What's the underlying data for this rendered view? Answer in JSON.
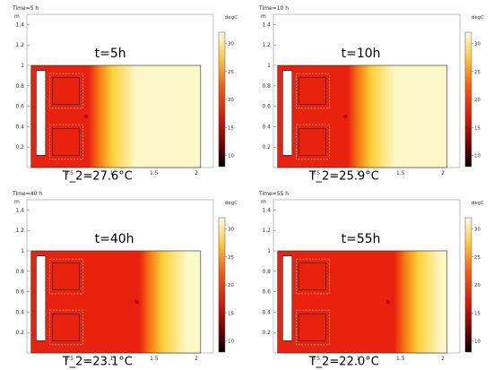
{
  "chart_data": [
    {
      "type": "heatmap",
      "title": "Time=5 h",
      "time_annotation": "t=5h",
      "temp_annotation": "T_2=27.6°C",
      "xunit": "",
      "yunit": "m",
      "xlim": [
        0,
        2.2
      ],
      "ylim": [
        0,
        1.5
      ],
      "xticks": [
        "0.5",
        "1",
        "1.5",
        "2"
      ],
      "yticks": [
        "0.2",
        "0.4",
        "0.6",
        "0.8",
        "1",
        "1.2",
        "1.4"
      ],
      "colorbar": {
        "unit": "degC",
        "ticks": [
          "10",
          "15",
          "20",
          "25",
          "30"
        ],
        "range": [
          8,
          32
        ]
      },
      "warm_front_x": 0.85
    },
    {
      "type": "heatmap",
      "title": "Time=10 h",
      "time_annotation": "t=10h",
      "temp_annotation": "T_2=25.9°C",
      "xunit": "",
      "yunit": "m",
      "xlim": [
        0,
        2.2
      ],
      "ylim": [
        0,
        1.5
      ],
      "xticks": [
        "0.5",
        "1",
        "1.5",
        "2"
      ],
      "yticks": [
        "0.2",
        "0.4",
        "0.6",
        "0.8",
        "1",
        "1.2",
        "1.4"
      ],
      "colorbar": {
        "unit": "degC",
        "ticks": [
          "10",
          "15",
          "20",
          "25",
          "30"
        ],
        "range": [
          8,
          32
        ]
      },
      "warm_front_x": 1.0
    },
    {
      "type": "heatmap",
      "title": "Time=40 h",
      "time_annotation": "t=40h",
      "temp_annotation": "T_2=23.1°C",
      "xunit": "",
      "yunit": "m",
      "xlim": [
        0,
        2.2
      ],
      "ylim": [
        0,
        1.5
      ],
      "xticks": [
        "0.5",
        "1",
        "1.5",
        "2"
      ],
      "yticks": [
        "0.2",
        "0.4",
        "0.6",
        "0.8",
        "1",
        "1.2",
        "1.4"
      ],
      "colorbar": {
        "unit": "degC",
        "ticks": [
          "10",
          "15",
          "20",
          "25",
          "30"
        ],
        "range": [
          8,
          32
        ]
      },
      "warm_front_x": 1.45
    },
    {
      "type": "heatmap",
      "title": "Time=55 h",
      "time_annotation": "t=55h",
      "temp_annotation": "T_2=22.0°C",
      "xunit": "",
      "yunit": "m",
      "xlim": [
        0,
        2.2
      ],
      "ylim": [
        0,
        1.5
      ],
      "xticks": [
        "0.5",
        "1",
        "1.5",
        "2"
      ],
      "yticks": [
        "0.2",
        "0.4",
        "0.6",
        "0.8",
        "1",
        "1.2",
        "1.4"
      ],
      "colorbar": {
        "unit": "degC",
        "ticks": [
          "10",
          "15",
          "20",
          "25",
          "30"
        ],
        "range": [
          8,
          32
        ]
      },
      "warm_front_x": 1.55
    }
  ],
  "colors": {
    "hot": "#e8220f",
    "warm": "#f57a12",
    "mild": "#fcd23a",
    "cool": "#fcf8c8",
    "outline": "#222222"
  }
}
